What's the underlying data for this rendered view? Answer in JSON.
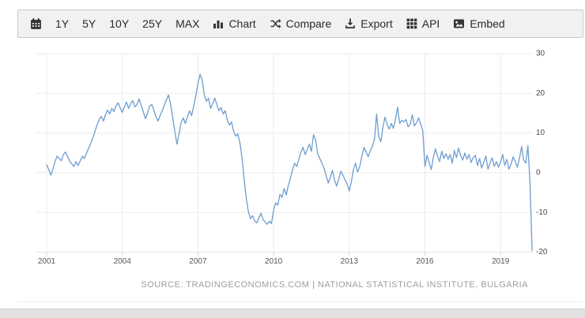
{
  "toolbar": {
    "range_buttons": [
      {
        "label": "1Y"
      },
      {
        "label": "5Y"
      },
      {
        "label": "10Y"
      },
      {
        "label": "25Y"
      },
      {
        "label": "MAX"
      }
    ],
    "action_buttons": [
      {
        "label": "Chart",
        "icon": "bar-chart-icon"
      },
      {
        "label": "Compare",
        "icon": "shuffle-icon"
      },
      {
        "label": "Export",
        "icon": "download-icon"
      },
      {
        "label": "API",
        "icon": "grid-icon"
      },
      {
        "label": "Embed",
        "icon": "image-icon"
      }
    ]
  },
  "chart_data": {
    "type": "line",
    "title": "",
    "xlabel": "",
    "ylabel": "",
    "legend": "none",
    "grid": true,
    "y_axis_position": "right",
    "line_color": "#6d9dd1",
    "ylim": [
      -20,
      30
    ],
    "y_ticks": [
      30,
      20,
      10,
      0,
      -10,
      -20
    ],
    "x_tick_years": [
      2001,
      2004,
      2007,
      2010,
      2013,
      2016,
      2019
    ],
    "x_tick_labels": [
      "2001",
      "2004",
      "2007",
      "2010",
      "2013",
      "2016",
      "2019"
    ],
    "x_start_year": 2001,
    "points_per_year": 12,
    "x_end": "2020-04",
    "values": [
      2.0,
      0.8,
      -0.6,
      1.0,
      2.8,
      4.2,
      3.6,
      3.0,
      4.6,
      5.2,
      4.0,
      2.8,
      2.2,
      1.6,
      2.8,
      1.8,
      3.0,
      4.2,
      3.6,
      5.0,
      6.2,
      7.4,
      8.8,
      10.4,
      12.0,
      13.4,
      14.2,
      13.0,
      14.6,
      15.8,
      14.8,
      16.2,
      15.4,
      16.8,
      17.6,
      16.4,
      15.2,
      16.6,
      17.8,
      16.2,
      17.4,
      18.2,
      16.6,
      17.2,
      18.6,
      17.0,
      15.4,
      13.6,
      15.0,
      16.8,
      17.2,
      15.8,
      14.2,
      13.0,
      14.4,
      15.6,
      17.0,
      18.4,
      19.6,
      17.2,
      13.8,
      10.4,
      7.2,
      9.8,
      12.6,
      13.8,
      12.4,
      14.0,
      15.6,
      14.4,
      16.8,
      19.4,
      22.6,
      24.8,
      23.4,
      19.6,
      18.0,
      18.8,
      16.2,
      17.4,
      18.8,
      17.2,
      15.6,
      16.4,
      14.8,
      15.6,
      13.2,
      12.0,
      12.8,
      10.4,
      9.2,
      9.8,
      7.4,
      3.6,
      -1.8,
      -6.4,
      -9.8,
      -11.6,
      -10.8,
      -12.2,
      -12.6,
      -11.4,
      -10.2,
      -11.8,
      -12.4,
      -13.0,
      -12.2,
      -12.8,
      -9.4,
      -7.6,
      -8.2,
      -5.4,
      -6.2,
      -4.0,
      -5.6,
      -3.2,
      -1.4,
      0.8,
      2.4,
      1.6,
      3.4,
      5.2,
      6.4,
      4.6,
      5.8,
      7.2,
      5.4,
      9.6,
      8.2,
      4.8,
      3.6,
      2.4,
      1.2,
      -0.8,
      -2.6,
      -1.2,
      0.6,
      -1.8,
      -3.4,
      -1.6,
      0.4,
      -0.6,
      -1.8,
      -2.8,
      -4.6,
      -2.2,
      0.8,
      2.4,
      0.2,
      1.6,
      4.2,
      6.4,
      5.2,
      4.0,
      5.6,
      6.6,
      8.4,
      14.8,
      9.2,
      7.8,
      11.4,
      14.0,
      12.2,
      11.0,
      12.4,
      11.2,
      13.6,
      16.5,
      12.4,
      13.2,
      12.8,
      13.4,
      11.6,
      12.2,
      14.6,
      11.8,
      12.6,
      13.8,
      12.2,
      10.6,
      1.6,
      4.4,
      2.6,
      0.8,
      3.8,
      6.0,
      4.2,
      2.8,
      5.4,
      3.6,
      4.8,
      3.4,
      4.6,
      2.4,
      5.6,
      3.8,
      6.2,
      4.4,
      3.2,
      5.0,
      3.4,
      4.6,
      2.6,
      3.8,
      4.4,
      1.8,
      3.6,
      1.2,
      2.6,
      4.2,
      0.9,
      2.4,
      3.8,
      1.6,
      2.8,
      1.4,
      2.6,
      4.6,
      1.8,
      3.4,
      0.9,
      2.2,
      4.0,
      2.8,
      1.4,
      3.6,
      6.6,
      3.2,
      2.4,
      6.8,
      -2.5,
      -19.6
    ]
  },
  "footer": {
    "source_text": "SOURCE: TRADINGECONOMICS.COM | NATIONAL STATISTICAL INSTITUTE, BULGARIA"
  }
}
